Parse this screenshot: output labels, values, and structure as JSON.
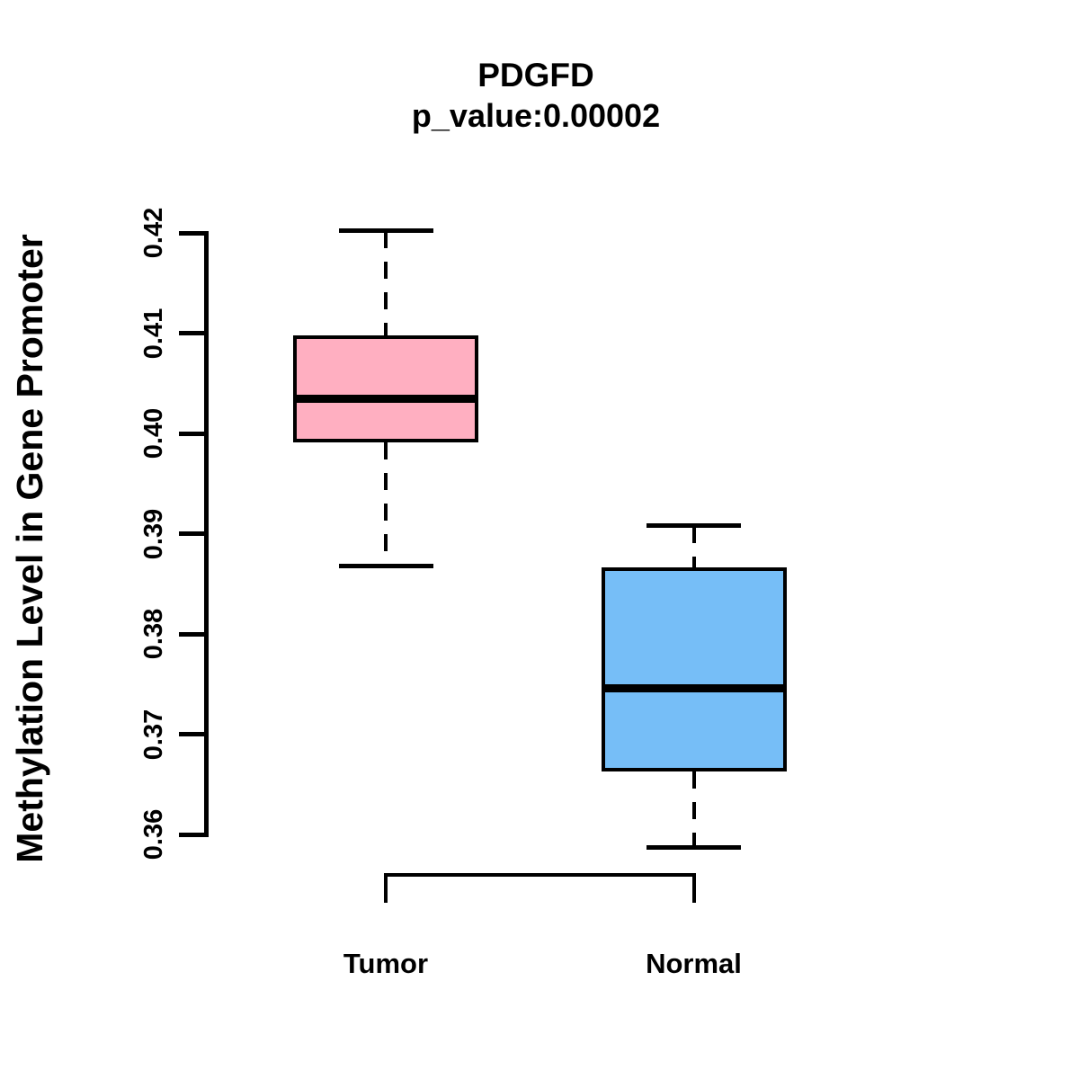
{
  "chart_data": {
    "type": "boxplot",
    "title": "PDGFD",
    "subtitle": "p_value:0.00002",
    "ylabel": "Methylation Level in Gene Promoter",
    "xlabel": "",
    "categories": [
      "Tumor",
      "Normal"
    ],
    "y_ticks": [
      "0.36",
      "0.37",
      "0.38",
      "0.39",
      "0.40",
      "0.41",
      "0.42"
    ],
    "ylim": [
      0.36,
      0.42
    ],
    "grid": false,
    "legend": "none",
    "series": [
      {
        "name": "Tumor",
        "fill_color": "#FFAFC1",
        "min": 0.3868,
        "q1": 0.3991,
        "median": 0.4035,
        "q3": 0.4098,
        "max": 0.4202
      },
      {
        "name": "Normal",
        "fill_color": "#76BEF7",
        "min": 0.3587,
        "q1": 0.3663,
        "median": 0.3746,
        "q3": 0.3866,
        "max": 0.3908
      }
    ],
    "line_color": "#000000"
  }
}
